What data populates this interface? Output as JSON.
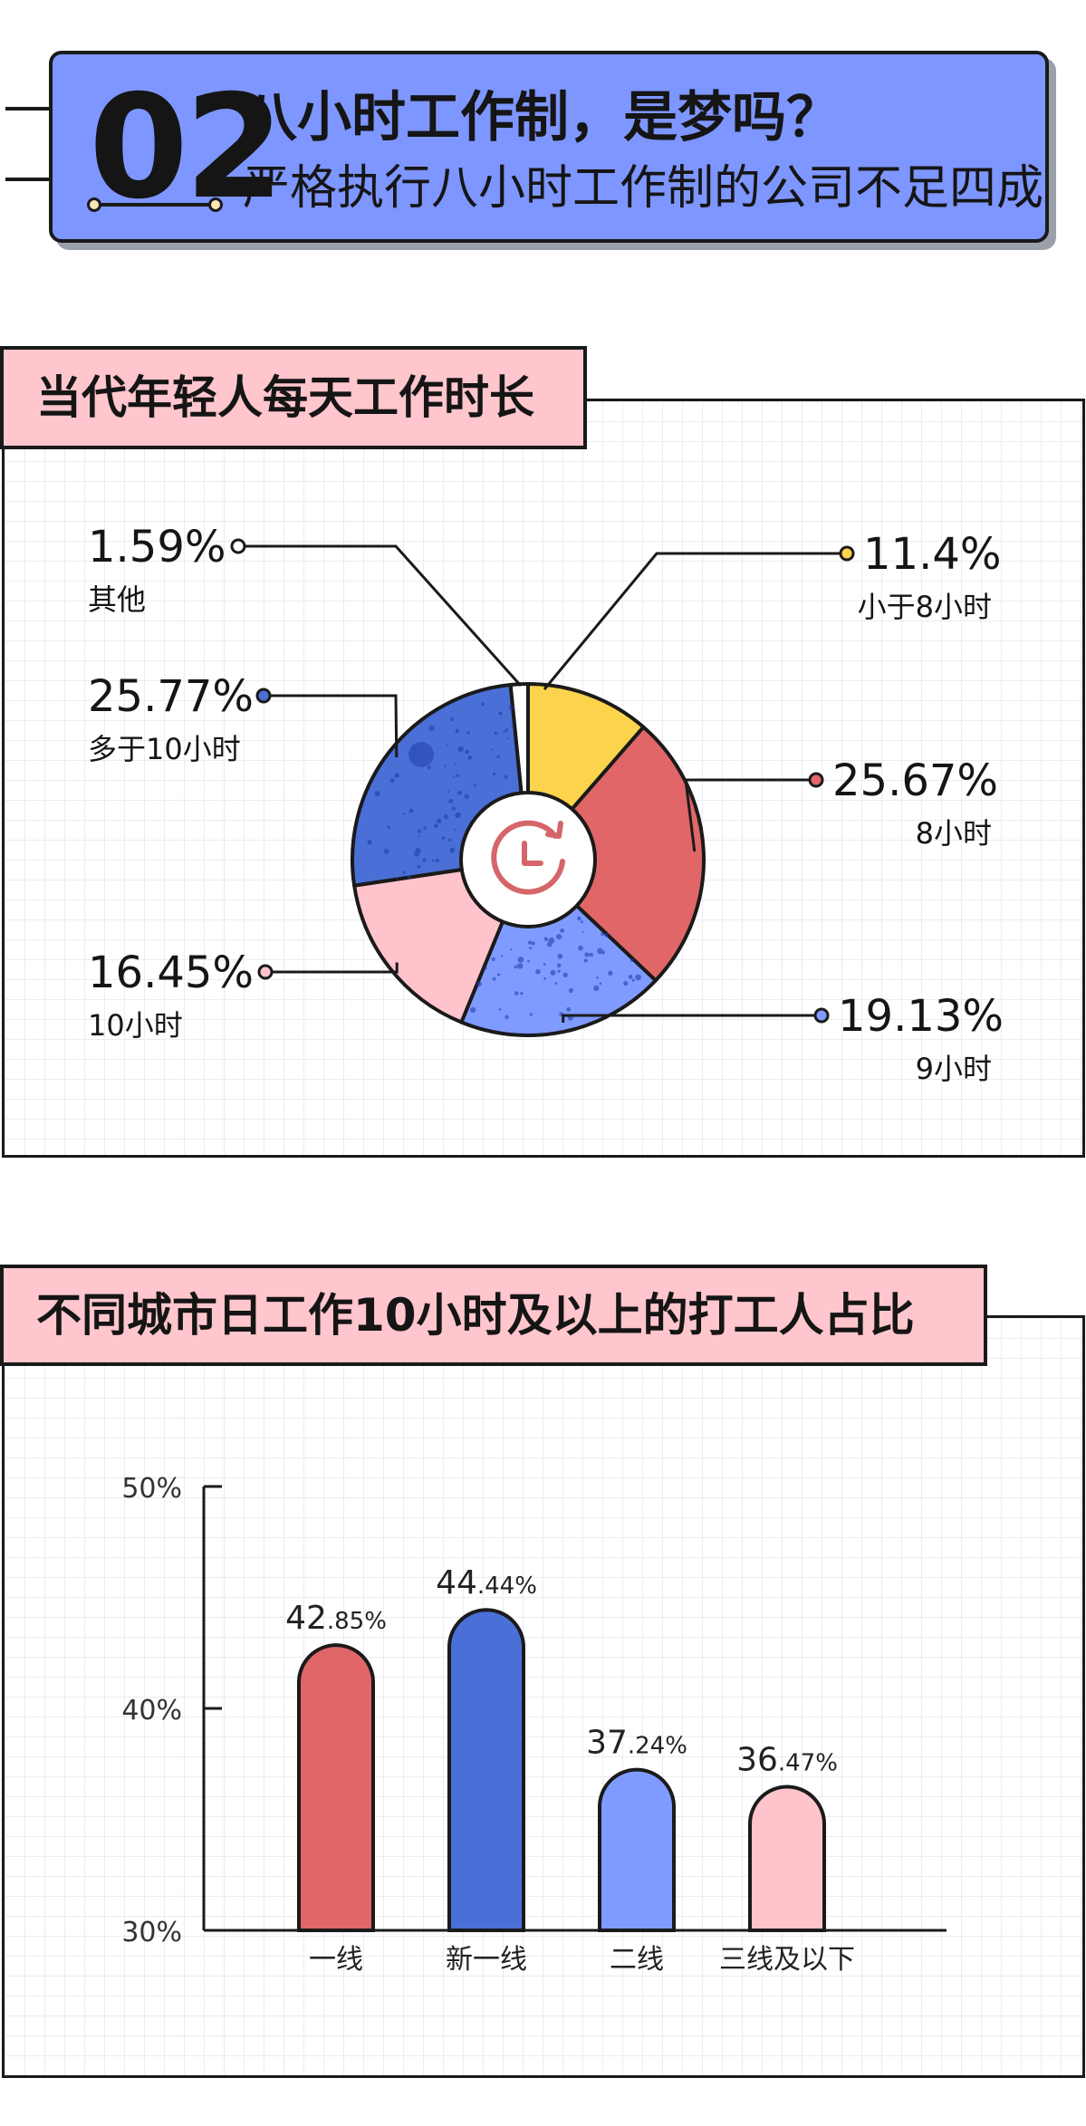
{
  "header": {
    "number": "02",
    "title": "八小时工作制，是梦吗？",
    "subtitle": "严格执行八小时工作制的公司不足四成"
  },
  "pie_panel": {
    "title": "当代年轻人每天工作时长"
  },
  "bar_panel": {
    "title": "不同城市日工作10小时及以上的打工人占比"
  },
  "icons": {
    "pie_center": "clock-icon"
  },
  "colors": {
    "yellow": "#fbd34d",
    "red": "#e06668",
    "blue_light": "#7f9bff",
    "pink": "#ffc3cc",
    "blue_dark": "#4a6fd6",
    "white": "#ffffff",
    "outline": "#1a1a1a"
  },
  "chart_data": [
    {
      "type": "pie",
      "title": "当代年轻人每天工作时长",
      "slices": [
        {
          "label": "小于8小时",
          "value": 11.4,
          "value_label": "11.4%",
          "color": "#fbd34d"
        },
        {
          "label": "8小时",
          "value": 25.67,
          "value_label": "25.67%",
          "color": "#e06668"
        },
        {
          "label": "9小时",
          "value": 19.13,
          "value_label": "19.13%",
          "color": "#7f9bff"
        },
        {
          "label": "10小时",
          "value": 16.45,
          "value_label": "16.45%",
          "color": "#ffc3cc"
        },
        {
          "label": "多于10小时",
          "value": 25.77,
          "value_label": "25.77%",
          "color": "#4a6fd6"
        },
        {
          "label": "其他",
          "value": 1.59,
          "value_label": "1.59%",
          "color": "#ffffff"
        }
      ]
    },
    {
      "type": "bar",
      "title": "不同城市日工作10小时及以上的打工人占比",
      "categories": [
        "一线",
        "新一线",
        "二线",
        "三线及以下"
      ],
      "values": [
        42.85,
        44.44,
        37.24,
        36.47
      ],
      "value_labels": [
        {
          "int": "42",
          "dec": ".85%"
        },
        {
          "int": "44",
          "dec": ".44%"
        },
        {
          "int": "37",
          "dec": ".24%"
        },
        {
          "int": "36",
          "dec": ".47%"
        }
      ],
      "colors": [
        "#e06668",
        "#4a6fd6",
        "#7f9bff",
        "#ffc3cc"
      ],
      "ylim": [
        30,
        50
      ],
      "yticks": [
        30,
        40,
        50
      ],
      "ytick_labels": [
        "30%",
        "40%",
        "50%"
      ],
      "grid": true
    }
  ]
}
